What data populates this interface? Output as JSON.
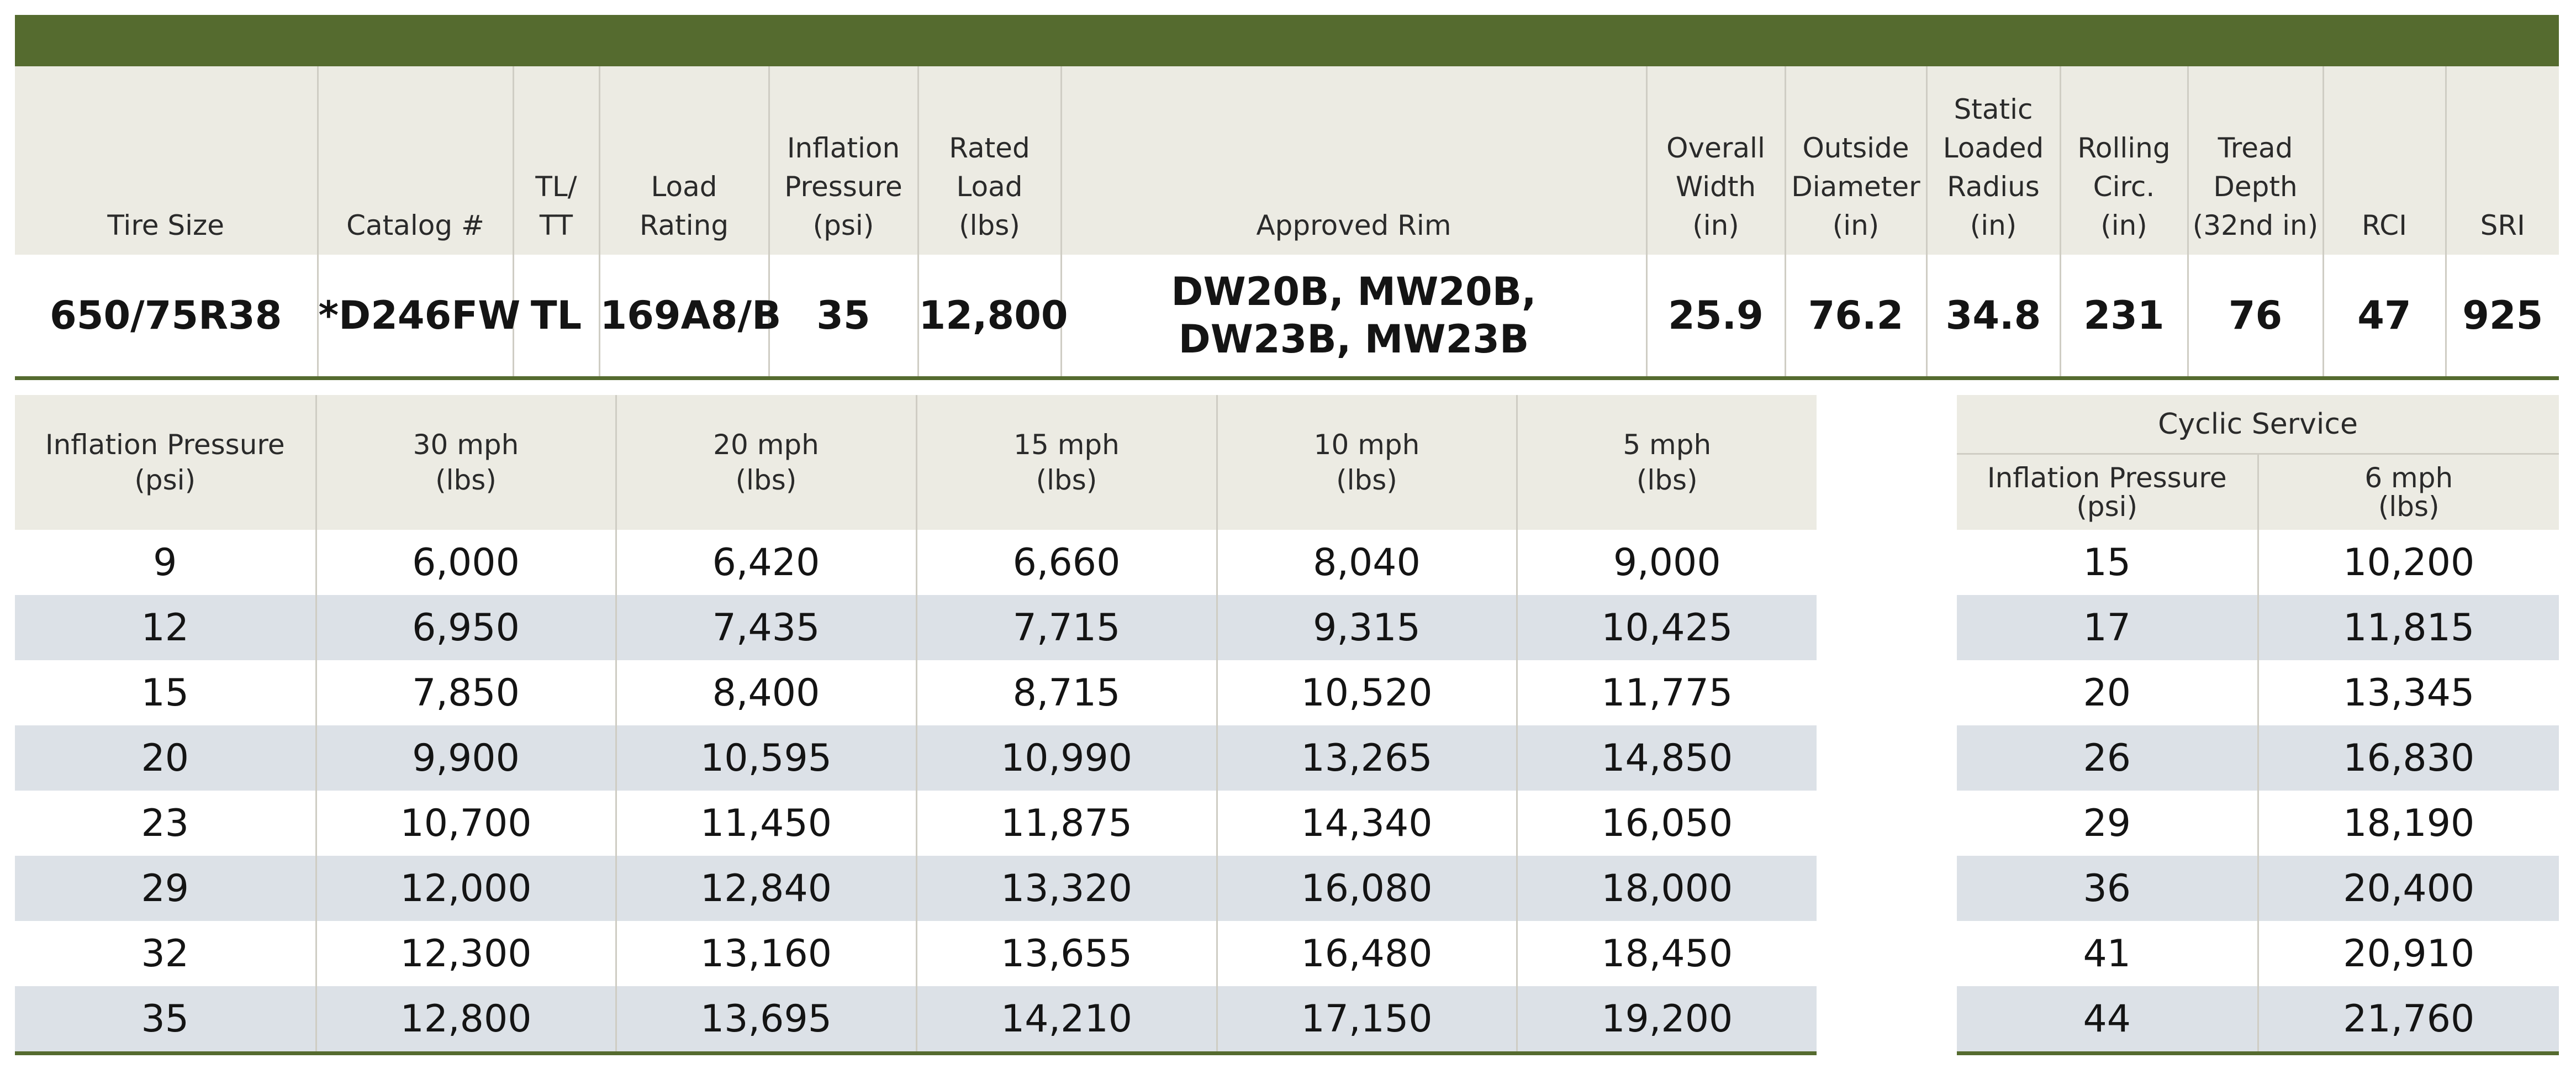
{
  "spec": {
    "headers": [
      [
        "Tire Size"
      ],
      [
        "Catalog #"
      ],
      [
        "TL/",
        "TT"
      ],
      [
        "Load",
        "Rating"
      ],
      [
        "Inflation",
        "Pressure",
        "(psi)"
      ],
      [
        "Rated",
        "Load",
        "(lbs)"
      ],
      [
        "Approved Rim"
      ],
      [
        "Overall",
        "Width",
        "(in)"
      ],
      [
        "Outside",
        "Diameter",
        "(in)"
      ],
      [
        "Static",
        "Loaded",
        "Radius",
        "(in)"
      ],
      [
        "Rolling",
        "Circ.",
        "(in)"
      ],
      [
        "Tread",
        "Depth",
        "(32nd in)"
      ],
      [
        "RCI"
      ],
      [
        "SRI"
      ]
    ],
    "row": {
      "tire_size": "650/75R38",
      "catalog": "*D246FW",
      "tl_tt": "TL",
      "load_rating": "169A8/B",
      "inflation_pressure": "35",
      "rated_load": "12,800",
      "approved_rim_line1": "DW20B, MW20B,",
      "approved_rim_line2": "DW23B, MW23B",
      "overall_width": "25.9",
      "outside_diameter": "76.2",
      "static_loaded_radius": "34.8",
      "rolling_circ": "231",
      "tread_depth": "76",
      "rci": "47",
      "sri": "925"
    }
  },
  "load_table": {
    "headers": [
      [
        "Inflation Pressure",
        "(psi)"
      ],
      [
        "30 mph",
        "(lbs)"
      ],
      [
        "20 mph",
        "(lbs)"
      ],
      [
        "15 mph",
        "(lbs)"
      ],
      [
        "10 mph",
        "(lbs)"
      ],
      [
        "5 mph",
        "(lbs)"
      ]
    ],
    "rows": [
      [
        "9",
        "6,000",
        "6,420",
        "6,660",
        "8,040",
        "9,000"
      ],
      [
        "12",
        "6,950",
        "7,435",
        "7,715",
        "9,315",
        "10,425"
      ],
      [
        "15",
        "7,850",
        "8,400",
        "8,715",
        "10,520",
        "11,775"
      ],
      [
        "20",
        "9,900",
        "10,595",
        "10,990",
        "13,265",
        "14,850"
      ],
      [
        "23",
        "10,700",
        "11,450",
        "11,875",
        "14,340",
        "16,050"
      ],
      [
        "29",
        "12,000",
        "12,840",
        "13,320",
        "16,080",
        "18,000"
      ],
      [
        "32",
        "12,300",
        "13,160",
        "13,655",
        "16,480",
        "18,450"
      ],
      [
        "35",
        "12,800",
        "13,695",
        "14,210",
        "17,150",
        "19,200"
      ]
    ]
  },
  "cyclic_table": {
    "title": "Cyclic Service",
    "headers": [
      [
        "Inflation Pressure",
        "(psi)"
      ],
      [
        "6 mph",
        "(lbs)"
      ]
    ],
    "rows": [
      [
        "15",
        "10,200"
      ],
      [
        "17",
        "11,815"
      ],
      [
        "20",
        "13,345"
      ],
      [
        "26",
        "16,830"
      ],
      [
        "29",
        "18,190"
      ],
      [
        "36",
        "20,400"
      ],
      [
        "41",
        "20,910"
      ],
      [
        "44",
        "21,760"
      ]
    ]
  },
  "colors": {
    "accent_green": "#556b2f",
    "header_bg": "#ecebe3",
    "stripe_bg": "#dce1e7"
  }
}
